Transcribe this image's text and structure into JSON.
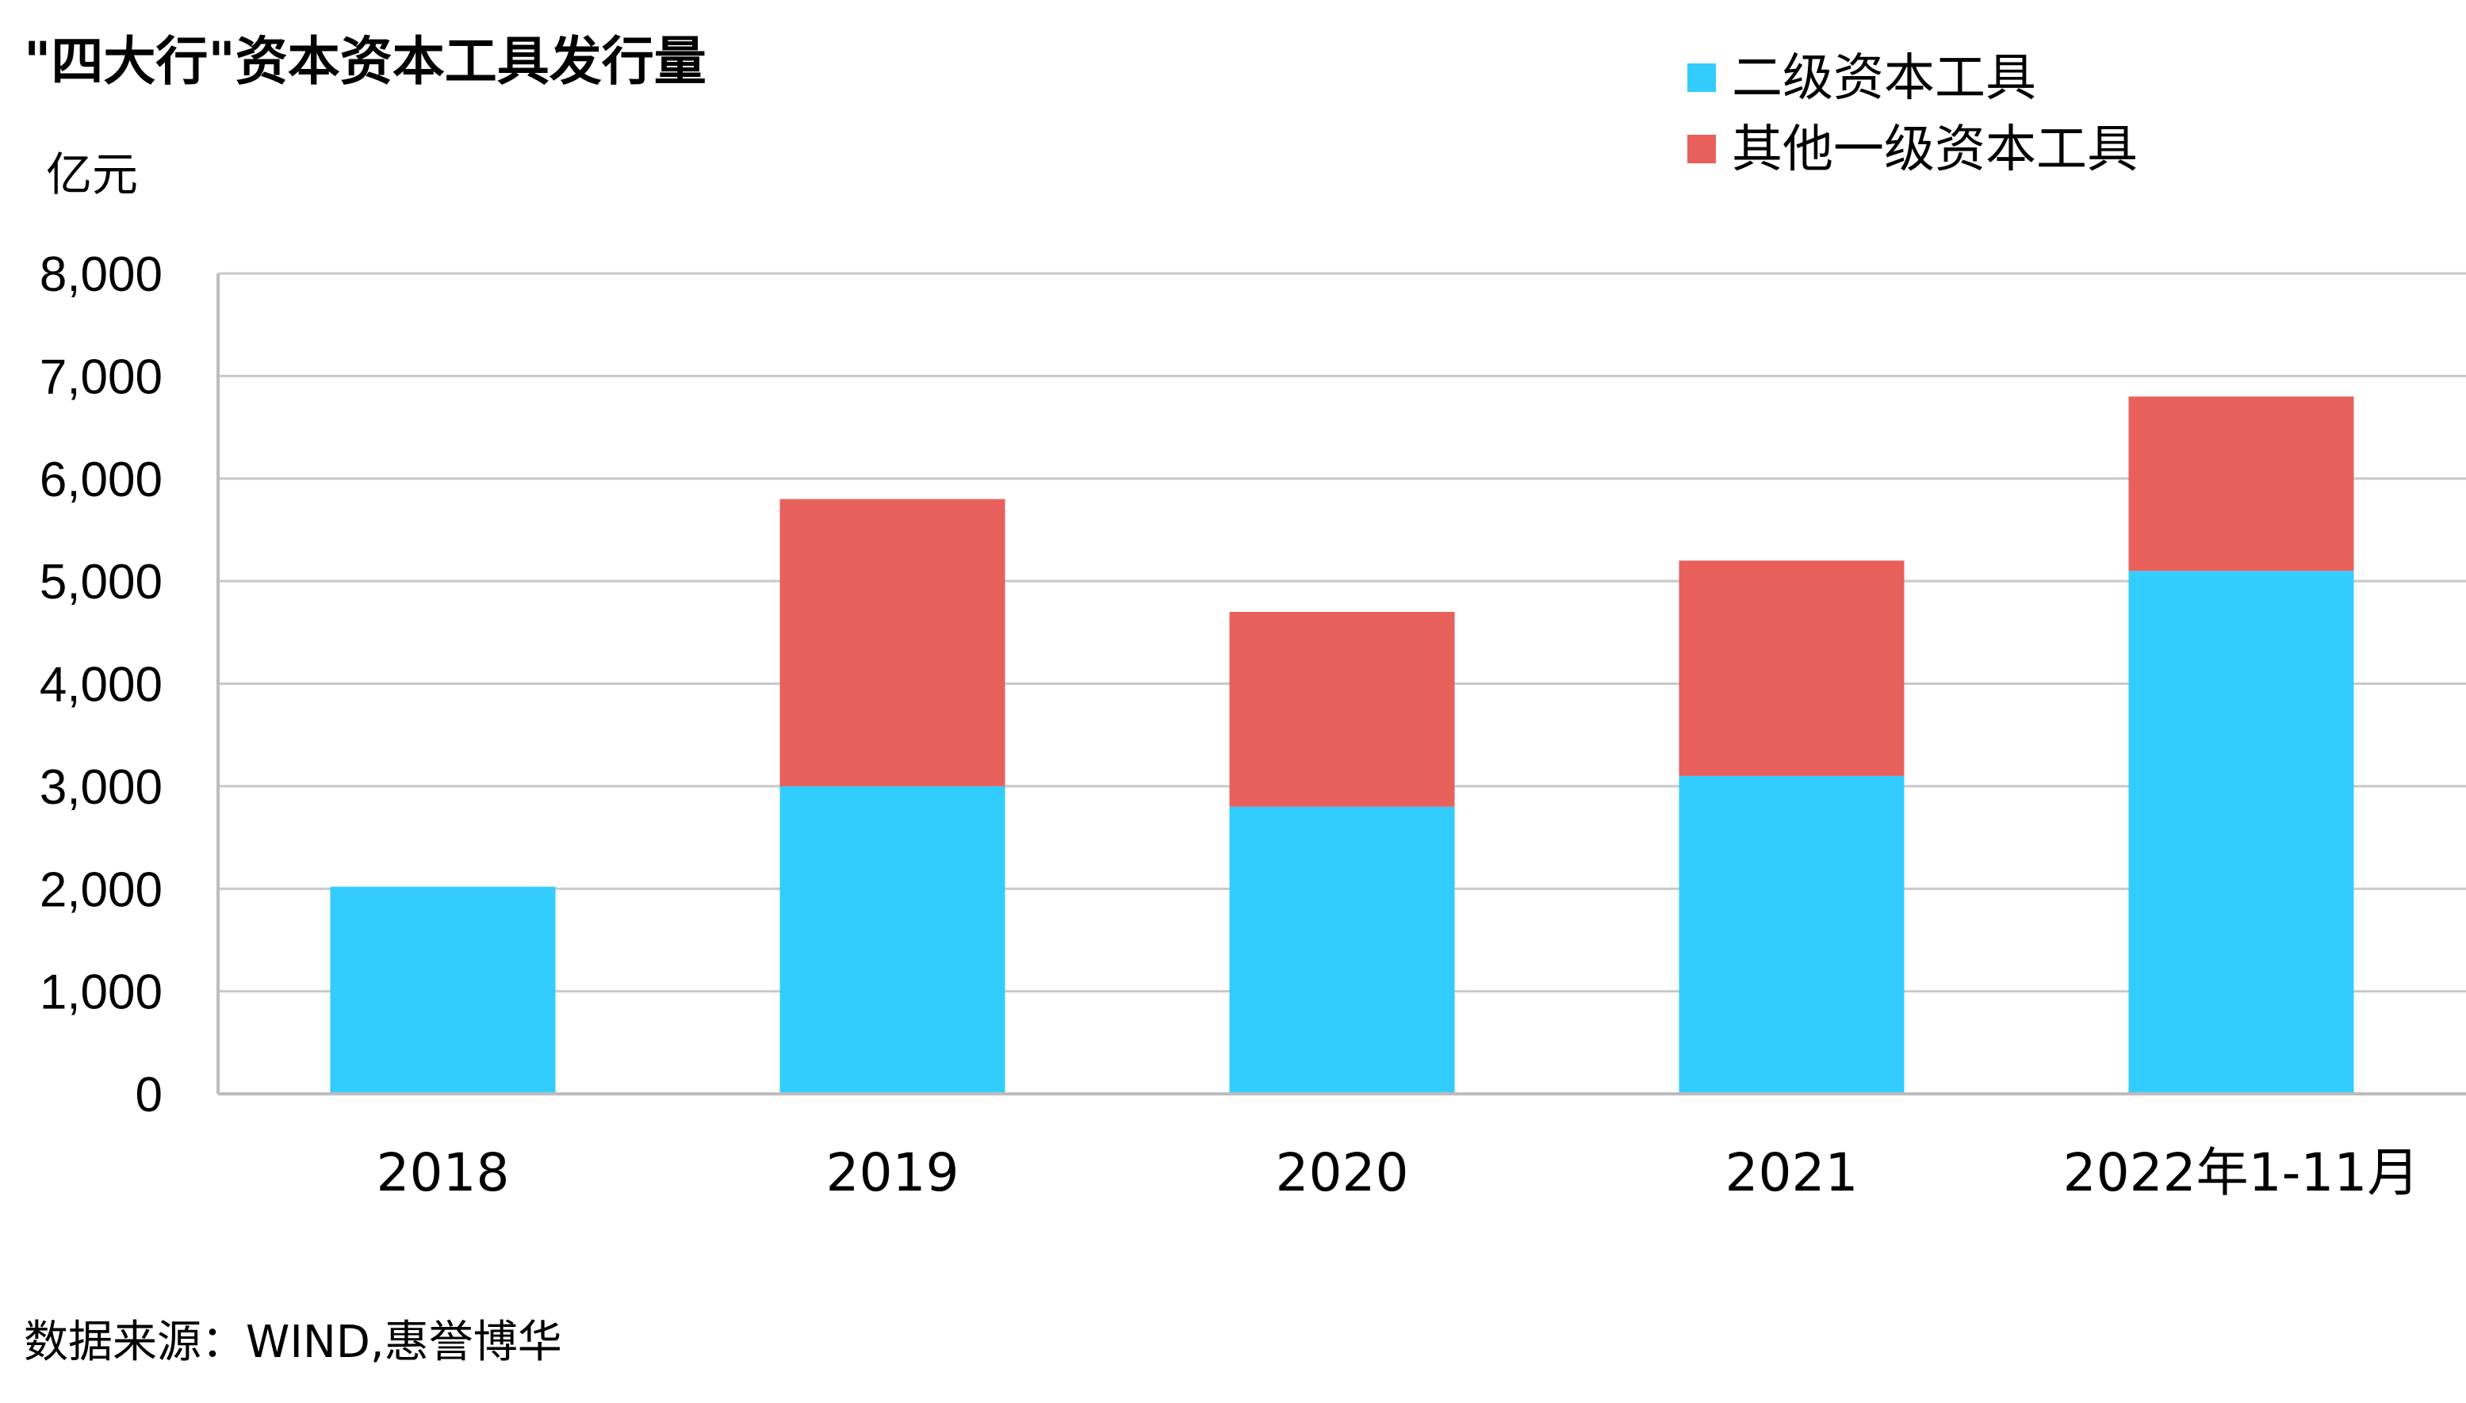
{
  "colors": {
    "series_1": "#33CCFF",
    "series_2": "#E8605C",
    "grid": "#C8C8C8",
    "axis": "#BDBDBD",
    "text": "#111111"
  },
  "source": "数据来源：WIND,惠誉博华",
  "chart_data": {
    "type": "bar",
    "stacked": true,
    "title": "\"四大行\"资本资本工具发行量",
    "ylabel": "亿元",
    "xlabel": "",
    "categories": [
      "2018",
      "2019",
      "2020",
      "2021",
      "2022年1-11月"
    ],
    "series": [
      {
        "name": "二级资本工具",
        "color": "#33CCFF",
        "values": [
          2020,
          3000,
          2800,
          3100,
          5100
        ]
      },
      {
        "name": "其他一级资本工具",
        "color": "#E8605C",
        "values": [
          0,
          2800,
          1900,
          2100,
          1700
        ]
      }
    ],
    "ylim": [
      0,
      8000
    ],
    "yticks": [
      0,
      1000,
      2000,
      3000,
      4000,
      5000,
      6000,
      7000,
      8000
    ],
    "ytick_labels": [
      "0",
      "1,000",
      "2,000",
      "3,000",
      "4,000",
      "5,000",
      "6,000",
      "7,000",
      "8,000"
    ],
    "grid": true,
    "legend_position": "top-right"
  }
}
